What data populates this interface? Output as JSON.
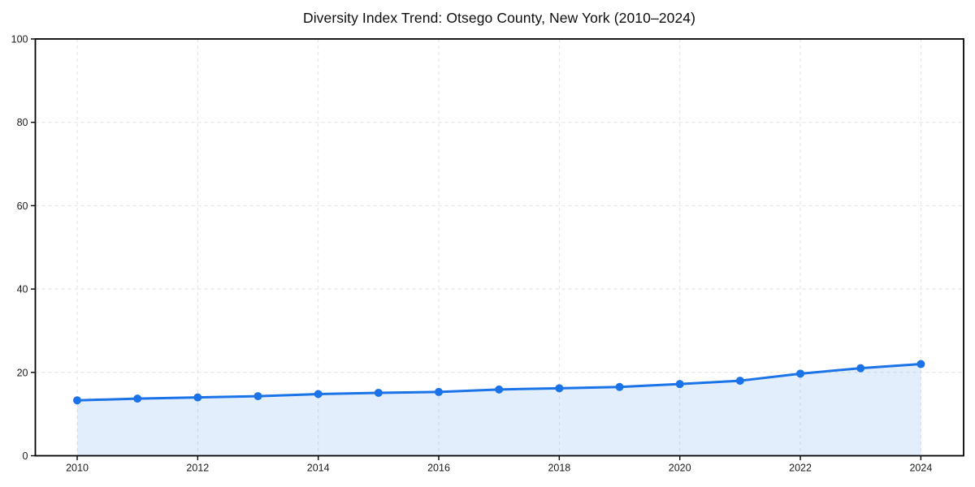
{
  "chart_data": {
    "type": "line",
    "title": "Diversity Index Trend: Otsego County, New York (2010–2024)",
    "x": [
      2010,
      2011,
      2012,
      2013,
      2014,
      2015,
      2016,
      2017,
      2018,
      2019,
      2020,
      2021,
      2022,
      2023,
      2024
    ],
    "values": [
      13.3,
      13.7,
      14.0,
      14.3,
      14.8,
      15.1,
      15.3,
      15.9,
      16.2,
      16.5,
      17.2,
      18.0,
      19.7,
      21.0,
      22.0
    ],
    "xlabel": "",
    "ylabel": "",
    "ylim": [
      0,
      100
    ],
    "xticks": [
      2010,
      2012,
      2014,
      2016,
      2018,
      2020,
      2022,
      2024
    ],
    "yticks": [
      0,
      20,
      40,
      60,
      80,
      100
    ],
    "grid": true,
    "grid_style": "dashed",
    "legend": false,
    "marker": "circle",
    "line_color": "#1a73e8",
    "marker_color": "#1a73e8",
    "fill_color": "#1a73e8",
    "fill_opacity": 0.12,
    "grid_color": "#e2e2e2",
    "axis_color": "#000000",
    "text_color": "#1a1a1a",
    "background_color": "#ffffff"
  }
}
